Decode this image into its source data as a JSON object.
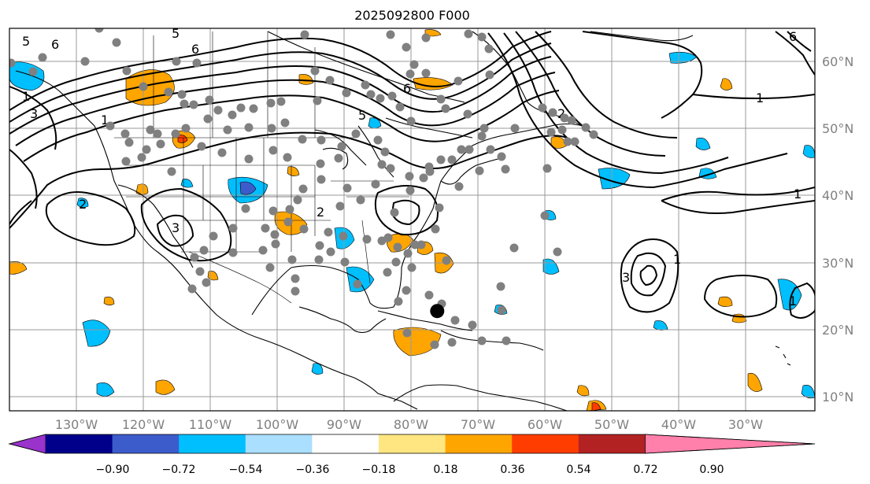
{
  "title": "2025092800 F000",
  "map": {
    "projection": "plate-carree",
    "lon_range": [
      -140,
      -19.5
    ],
    "lat_range": [
      7.5,
      65
    ],
    "lat_labels": [
      "10°N",
      "20°N",
      "30°N",
      "40°N",
      "50°N",
      "60°N"
    ],
    "lon_labels": [
      "130°W",
      "120°W",
      "110°W",
      "100°W",
      "90°W",
      "80°W",
      "70°W",
      "60°W",
      "50°W",
      "40°W",
      "30°W"
    ],
    "contour_labels": [
      "5",
      "6",
      "5",
      "6",
      "1",
      "3",
      "1",
      "5",
      "2",
      "3",
      "2",
      "6",
      "1",
      "1",
      "3",
      "1",
      "2",
      "1",
      "6"
    ],
    "storm_marker": {
      "lon": -76,
      "lat": 22.5
    },
    "observation_color": "#808080"
  },
  "colorbar": {
    "ticks": [
      "−0.90",
      "−0.72",
      "−0.54",
      "−0.36",
      "−0.18",
      "0.18",
      "0.36",
      "0.54",
      "0.72",
      "0.90"
    ],
    "colors": [
      "#9933cc",
      "#00008b",
      "#3d5ccc",
      "#00bfff",
      "#aadfff",
      "#ffffff",
      "#ffe680",
      "#ffa500",
      "#ff3d00",
      "#b22222",
      "#ff80aa"
    ]
  }
}
